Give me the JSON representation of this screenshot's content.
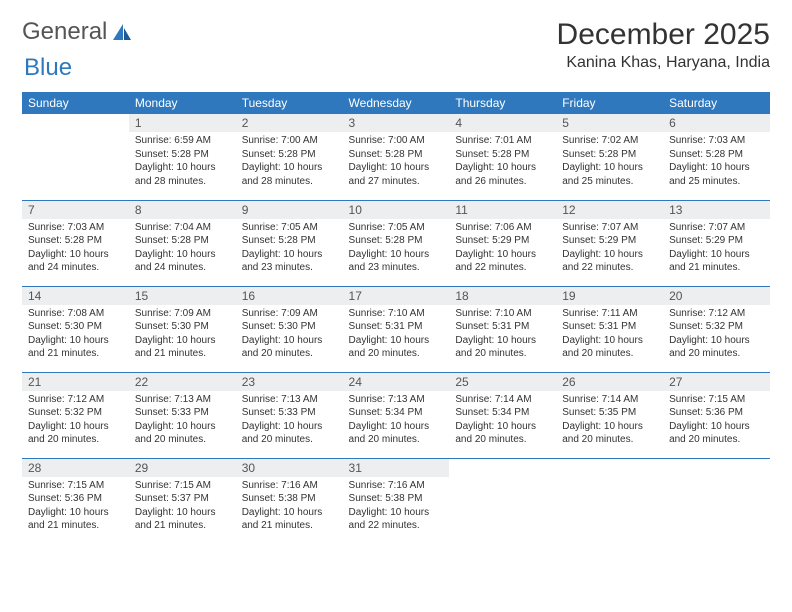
{
  "logo": {
    "textA": "General",
    "textB": "Blue"
  },
  "title": "December 2025",
  "location": "Kanina Khas, Haryana, India",
  "colors": {
    "primary": "#2f78bd",
    "header_bg": "#2f78bd",
    "header_text": "#ffffff",
    "daynum_bg": "#eceeef",
    "text": "#333333"
  },
  "weekdays": [
    "Sunday",
    "Monday",
    "Tuesday",
    "Wednesday",
    "Thursday",
    "Friday",
    "Saturday"
  ],
  "first_weekday_index": 1,
  "days": [
    {
      "n": 1,
      "sr": "6:59 AM",
      "ss": "5:28 PM",
      "dl": "10 hours and 28 minutes."
    },
    {
      "n": 2,
      "sr": "7:00 AM",
      "ss": "5:28 PM",
      "dl": "10 hours and 28 minutes."
    },
    {
      "n": 3,
      "sr": "7:00 AM",
      "ss": "5:28 PM",
      "dl": "10 hours and 27 minutes."
    },
    {
      "n": 4,
      "sr": "7:01 AM",
      "ss": "5:28 PM",
      "dl": "10 hours and 26 minutes."
    },
    {
      "n": 5,
      "sr": "7:02 AM",
      "ss": "5:28 PM",
      "dl": "10 hours and 25 minutes."
    },
    {
      "n": 6,
      "sr": "7:03 AM",
      "ss": "5:28 PM",
      "dl": "10 hours and 25 minutes."
    },
    {
      "n": 7,
      "sr": "7:03 AM",
      "ss": "5:28 PM",
      "dl": "10 hours and 24 minutes."
    },
    {
      "n": 8,
      "sr": "7:04 AM",
      "ss": "5:28 PM",
      "dl": "10 hours and 24 minutes."
    },
    {
      "n": 9,
      "sr": "7:05 AM",
      "ss": "5:28 PM",
      "dl": "10 hours and 23 minutes."
    },
    {
      "n": 10,
      "sr": "7:05 AM",
      "ss": "5:28 PM",
      "dl": "10 hours and 23 minutes."
    },
    {
      "n": 11,
      "sr": "7:06 AM",
      "ss": "5:29 PM",
      "dl": "10 hours and 22 minutes."
    },
    {
      "n": 12,
      "sr": "7:07 AM",
      "ss": "5:29 PM",
      "dl": "10 hours and 22 minutes."
    },
    {
      "n": 13,
      "sr": "7:07 AM",
      "ss": "5:29 PM",
      "dl": "10 hours and 21 minutes."
    },
    {
      "n": 14,
      "sr": "7:08 AM",
      "ss": "5:30 PM",
      "dl": "10 hours and 21 minutes."
    },
    {
      "n": 15,
      "sr": "7:09 AM",
      "ss": "5:30 PM",
      "dl": "10 hours and 21 minutes."
    },
    {
      "n": 16,
      "sr": "7:09 AM",
      "ss": "5:30 PM",
      "dl": "10 hours and 20 minutes."
    },
    {
      "n": 17,
      "sr": "7:10 AM",
      "ss": "5:31 PM",
      "dl": "10 hours and 20 minutes."
    },
    {
      "n": 18,
      "sr": "7:10 AM",
      "ss": "5:31 PM",
      "dl": "10 hours and 20 minutes."
    },
    {
      "n": 19,
      "sr": "7:11 AM",
      "ss": "5:31 PM",
      "dl": "10 hours and 20 minutes."
    },
    {
      "n": 20,
      "sr": "7:12 AM",
      "ss": "5:32 PM",
      "dl": "10 hours and 20 minutes."
    },
    {
      "n": 21,
      "sr": "7:12 AM",
      "ss": "5:32 PM",
      "dl": "10 hours and 20 minutes."
    },
    {
      "n": 22,
      "sr": "7:13 AM",
      "ss": "5:33 PM",
      "dl": "10 hours and 20 minutes."
    },
    {
      "n": 23,
      "sr": "7:13 AM",
      "ss": "5:33 PM",
      "dl": "10 hours and 20 minutes."
    },
    {
      "n": 24,
      "sr": "7:13 AM",
      "ss": "5:34 PM",
      "dl": "10 hours and 20 minutes."
    },
    {
      "n": 25,
      "sr": "7:14 AM",
      "ss": "5:34 PM",
      "dl": "10 hours and 20 minutes."
    },
    {
      "n": 26,
      "sr": "7:14 AM",
      "ss": "5:35 PM",
      "dl": "10 hours and 20 minutes."
    },
    {
      "n": 27,
      "sr": "7:15 AM",
      "ss": "5:36 PM",
      "dl": "10 hours and 20 minutes."
    },
    {
      "n": 28,
      "sr": "7:15 AM",
      "ss": "5:36 PM",
      "dl": "10 hours and 21 minutes."
    },
    {
      "n": 29,
      "sr": "7:15 AM",
      "ss": "5:37 PM",
      "dl": "10 hours and 21 minutes."
    },
    {
      "n": 30,
      "sr": "7:16 AM",
      "ss": "5:38 PM",
      "dl": "10 hours and 21 minutes."
    },
    {
      "n": 31,
      "sr": "7:16 AM",
      "ss": "5:38 PM",
      "dl": "10 hours and 22 minutes."
    }
  ],
  "labels": {
    "sunrise": "Sunrise:",
    "sunset": "Sunset:",
    "daylight": "Daylight:"
  }
}
